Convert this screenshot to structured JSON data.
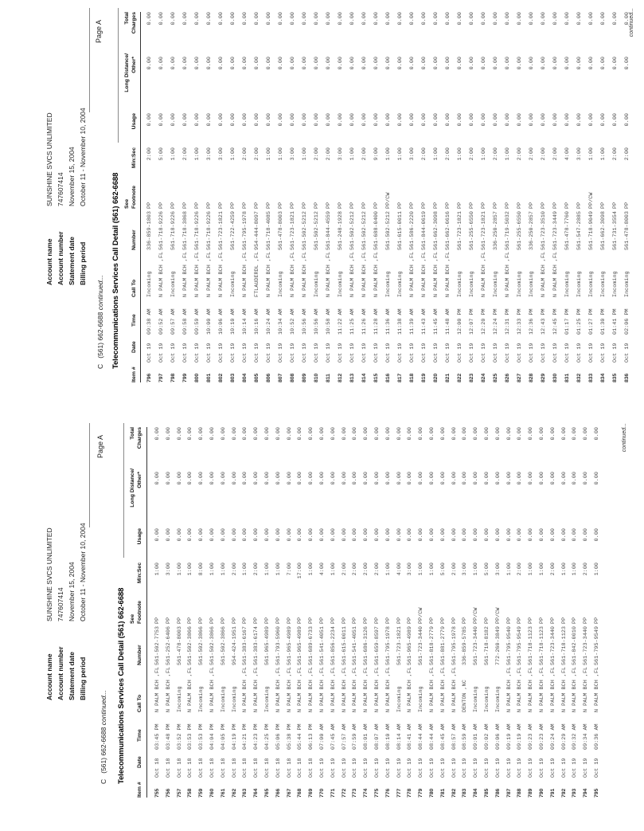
{
  "header": {
    "page_label": "Page A",
    "account": [
      {
        "label": "Account name",
        "value": "SUNSHINE SVCS UNLIMITED"
      },
      {
        "label": "Account number",
        "value": "747607414"
      },
      {
        "label": "Statement date",
        "value": "November 15, 2004"
      },
      {
        "label": "Billing period",
        "value": "October 11 - November 10, 2004"
      }
    ],
    "section_prefix": "C",
    "section_number": "(561) 662-6688",
    "section_continued": "continued...",
    "title": "Telecommunications Services Call Detail (561) 662-6688"
  },
  "table": {
    "headers_top": {
      "see": "See",
      "long_distance": "Long Distance/",
      "total": "Total"
    },
    "headers": {
      "item": "Item #",
      "date": "Date",
      "time": "Time",
      "call_to": "Call To",
      "number": "Number",
      "footnote": "Footnote",
      "min_sec": "Min:Sec",
      "usage": "Usage",
      "other": "Other*",
      "charges": "Charges"
    },
    "zero": "0.00"
  },
  "footer": {
    "continued": "continued..."
  },
  "pages": [
    {
      "name": "call-detail-items-796-836",
      "rows": [
        [
          "796",
          "Oct 19",
          "09:38 AM",
          "Incoming",
          "336-859-1803",
          "PP",
          "2:00"
        ],
        [
          "797",
          "Oct 19",
          "09:52 AM",
          "N PALM BCH ,FL",
          "561-718-9226",
          "PP",
          "5:00"
        ],
        [
          "798",
          "Oct 19",
          "09:57 AM",
          "Incoming",
          "561-718-9226",
          "PP",
          "1:00"
        ],
        [
          "799",
          "Oct 19",
          "09:58 AM",
          "N PALM BCH ,FL",
          "561-718-3868",
          "PP",
          "2:00"
        ],
        [
          "800",
          "Oct 19",
          "09:59 AM",
          "N PALM BCH ,FL",
          "561-718-9226",
          "PP",
          "1:00"
        ],
        [
          "801",
          "Oct 19",
          "10:00 AM",
          "N PALM BCH ,FL",
          "561-718-9226",
          "PP",
          "3:00"
        ],
        [
          "802",
          "Oct 19",
          "10:06 AM",
          "N PALM BCH ,FL",
          "561-723-1821",
          "PP",
          "3:00"
        ],
        [
          "803",
          "Oct 19",
          "10:10 AM",
          "Incoming",
          "561-722-4259",
          "PP",
          "1:00"
        ],
        [
          "804",
          "Oct 19",
          "10:14 AM",
          "N PALM BCH ,FL",
          "561-795-1978",
          "PP",
          "2:00"
        ],
        [
          "805",
          "Oct 19",
          "10:16 AM",
          "FTLAUDERDL ,FL",
          "954-444-8097",
          "PP",
          "2:00"
        ],
        [
          "806",
          "Oct 19",
          "10:24 AM",
          "N PALM BCH ,FL",
          "561-718-4085",
          "PP",
          "1:00"
        ],
        [
          "807",
          "Oct 19",
          "10:34 AM",
          "Incoming",
          "561-478-8003",
          "PP",
          "1:00"
        ],
        [
          "808",
          "Oct 19",
          "10:52 AM",
          "N PALM BCH ,FL",
          "561-723-1821",
          "PP",
          "3:00"
        ],
        [
          "809",
          "Oct 19",
          "10:56 AM",
          "N PALM BCH ,FL",
          "561-502-5212",
          "PP",
          "1:00"
        ],
        [
          "810",
          "Oct 19",
          "10:56 AM",
          "Incoming",
          "561-502-5212",
          "PP",
          "2:00"
        ],
        [
          "811",
          "Oct 19",
          "10:58 AM",
          "N PALM BCH ,FL",
          "561-844-4559",
          "PP",
          "2:00"
        ],
        [
          "812",
          "Oct 19",
          "11:22 AM",
          "Incoming",
          "561-248-1928",
          "PP",
          "3:00"
        ],
        [
          "813",
          "Oct 19",
          "11:25 AM",
          "N PALM BCH ,FL",
          "561-502-5212",
          "PP",
          "1:00"
        ],
        [
          "814",
          "Oct 19",
          "11:26 AM",
          "N PALM BCH ,FL",
          "561-502-5212",
          "PP",
          "2:00"
        ],
        [
          "815",
          "Oct 19",
          "11:28 AM",
          "N PALM BCH ,FL",
          "561-688-0400",
          "PP",
          "9:00"
        ],
        [
          "816",
          "Oct 19",
          "11:36 AM",
          "Incoming",
          "561-502-5212",
          "PP/CW",
          "1:00"
        ],
        [
          "817",
          "Oct 19",
          "11:38 AM",
          "Incoming",
          "561-615-0011",
          "PP",
          "1:00"
        ],
        [
          "818",
          "Oct 19",
          "11:39 AM",
          "N PALM BCH ,FL",
          "561-586-2220",
          "PP",
          "3:00"
        ],
        [
          "819",
          "Oct 19",
          "11:43 AM",
          "N PALM BCH ,FL",
          "561-844-0619",
          "PP",
          "2:00"
        ],
        [
          "820",
          "Oct 19",
          "11:45 AM",
          "N PALM BCH ,FL",
          "561-662-3098",
          "PP",
          "1:00"
        ],
        [
          "821",
          "Oct 19",
          "11:48 AM",
          "N PALM BCH ,FL",
          "561-662-6616",
          "PP",
          "2:00"
        ],
        [
          "822",
          "Oct 19",
          "12:00 PM",
          "Incoming",
          "561-723-1821",
          "PP",
          "1:00"
        ],
        [
          "823",
          "Oct 19",
          "12:07 PM",
          "Incoming",
          "561-255-6550",
          "PP",
          "2:00"
        ],
        [
          "824",
          "Oct 19",
          "12:20 PM",
          "N PALM BCH ,FL",
          "561-723-1821",
          "PP",
          "1:00"
        ],
        [
          "825",
          "Oct 19",
          "12:24 PM",
          "Incoming",
          "336-250-2857",
          "PP",
          "2:00"
        ],
        [
          "826",
          "Oct 19",
          "12:31 PM",
          "N PALM BCH ,FL",
          "561-719-5032",
          "PP",
          "1:00"
        ],
        [
          "827",
          "Oct 19",
          "12:33 PM",
          "Incoming",
          "561-255-6550",
          "PP",
          "2:00"
        ],
        [
          "828",
          "Oct 19",
          "12:36 PM",
          "Incoming",
          "336-250-2857",
          "PP",
          "2:00"
        ],
        [
          "829",
          "Oct 19",
          "12:43 PM",
          "N PALM BCH ,FL",
          "561-723-3510",
          "PP",
          "2:00"
        ],
        [
          "830",
          "Oct 19",
          "12:45 PM",
          "N PALM BCH ,FL",
          "561-723-3449",
          "PP",
          "2:00"
        ],
        [
          "831",
          "Oct 19",
          "01:17 PM",
          "Incoming",
          "561-478-7760",
          "PP",
          "4:00"
        ],
        [
          "832",
          "Oct 19",
          "01:25 PM",
          "Incoming",
          "561-547-2885",
          "PP",
          "3:00"
        ],
        [
          "833",
          "Oct 19",
          "01:27 PM",
          "Incoming",
          "561-718-9049",
          "PP/CW",
          "1:00"
        ],
        [
          "834",
          "Oct 19",
          "01:30 PM",
          "Incoming",
          "561-662-3098",
          "PP",
          "1:00"
        ],
        [
          "835",
          "Oct 19",
          "01:41 PM",
          "Incoming",
          "561-731-3554",
          "PP",
          "2:00"
        ],
        [
          "836",
          "Oct 19",
          "02:06 PM",
          "Incoming",
          "561-478-8003",
          "PP",
          "2:00"
        ]
      ]
    },
    {
      "name": "call-detail-items-755-795",
      "rows": [
        [
          "755",
          "Oct 18",
          "03:45 PM",
          "N PALM BCH ,FL",
          "561-502-7753",
          "PP",
          "1:00"
        ],
        [
          "756",
          "Oct 18",
          "03:48 PM",
          "N PALM BCH ,FL",
          "561-252-6406",
          "PP",
          "3:00"
        ],
        [
          "757",
          "Oct 18",
          "03:52 PM",
          "Incoming",
          "561-478-8003",
          "PP",
          "1:00"
        ],
        [
          "758",
          "Oct 18",
          "03:53 PM",
          "N PALM BCH ,FL",
          "561-502-3866",
          "PP",
          "1:00"
        ],
        [
          "759",
          "Oct 18",
          "03:53 PM",
          "Incoming",
          "561-502-3866",
          "PP",
          "8:00"
        ],
        [
          "760",
          "Oct 18",
          "04:04 PM",
          "N PALM BCH ,FL",
          "561-502-3866",
          "PP",
          "1:00"
        ],
        [
          "761",
          "Oct 18",
          "04:05 PM",
          "Incoming",
          "561-502-3866",
          "PP",
          "1:00"
        ],
        [
          "762",
          "Oct 18",
          "04:19 PM",
          "Incoming",
          "954-424-1951",
          "PP",
          "2:00"
        ],
        [
          "763",
          "Oct 18",
          "04:21 PM",
          "N PALM BCH ,FL",
          "561-383-6167",
          "PP",
          "1:00"
        ],
        [
          "764",
          "Oct 18",
          "04:23 PM",
          "N PALM BCH ,FL",
          "561-383-6174",
          "PP",
          "2:00"
        ],
        [
          "765",
          "Oct 18",
          "04:25 PM",
          "Incoming",
          "561-965-4989",
          "PP",
          "1:00"
        ],
        [
          "766",
          "Oct 18",
          "05:06 PM",
          "N PALM BCH ,FL",
          "561-793-5960",
          "PP",
          "1:00"
        ],
        [
          "767",
          "Oct 18",
          "05:38 PM",
          "N PALM BCH ,FL",
          "561-965-4989",
          "PP",
          "7:00"
        ],
        [
          "768",
          "Oct 18",
          "05:44 PM",
          "N PALM BCH ,FL",
          "561-965-4989",
          "PP",
          "17:00"
        ],
        [
          "769",
          "Oct 18",
          "06:13 PM",
          "N PALM BCH ,FL",
          "561-689-6733",
          "PP",
          "1:00"
        ],
        [
          "770",
          "Oct 19",
          "07:00 AM",
          "N PALM BCH ,FL",
          "561-541-4051",
          "PP",
          "4:00"
        ],
        [
          "771",
          "Oct 19",
          "07:45 AM",
          "N PALM BCH ,FL",
          "561-856-2234",
          "PP",
          "1:00"
        ],
        [
          "772",
          "Oct 19",
          "07:57 AM",
          "N PALM BCH ,FL",
          "561-615-0011",
          "PP",
          "2:00"
        ],
        [
          "773",
          "Oct 19",
          "07:59 AM",
          "N PALM BCH ,FL",
          "561-541-4051",
          "PP",
          "2:00"
        ],
        [
          "774",
          "Oct 19",
          "08:01 AM",
          "N PALM BCH ,FL",
          "561-686-3126",
          "PP",
          "2:00"
        ],
        [
          "775",
          "Oct 19",
          "08:07 AM",
          "N PALM BCH ,FL",
          "561-659-8597",
          "PP",
          "2:00"
        ],
        [
          "776",
          "Oct 19",
          "08:10 AM",
          "N PALM BCH ,FL",
          "561-795-1978",
          "PP",
          "1:00"
        ],
        [
          "777",
          "Oct 19",
          "08:14 AM",
          "Incoming",
          "561-723-1821",
          "PP",
          "4:00"
        ],
        [
          "778",
          "Oct 19",
          "08:41 AM",
          "N PALM BCH ,FL",
          "561-965-4989",
          "PP",
          "3:00"
        ],
        [
          "779",
          "Oct 19",
          "08:44 AM",
          "Incoming",
          "561-723-3440",
          "PP/CW",
          "1:00"
        ],
        [
          "780",
          "Oct 19",
          "08:44 AM",
          "N PALM BCH ,FL",
          "561-818-2779",
          "PP",
          "1:00"
        ],
        [
          "781",
          "Oct 19",
          "08:45 AM",
          "N PALM BCH ,FL",
          "561-881-2779",
          "PP",
          "5:00"
        ],
        [
          "782",
          "Oct 19",
          "08:57 AM",
          "N PALM BCH ,FL",
          "561-795-1978",
          "PP",
          "2:00"
        ],
        [
          "783",
          "Oct 19",
          "08:59 AM",
          "DENTON ,NC",
          "336-859-5785",
          "PP",
          "3:00"
        ],
        [
          "784",
          "Oct 19",
          "09:01 AM",
          "Incoming",
          "561-723-3440",
          "PP/CW",
          "1:00"
        ],
        [
          "785",
          "Oct 19",
          "09:02 AM",
          "Incoming",
          "561-718-8182",
          "PP",
          "5:00"
        ],
        [
          "786",
          "Oct 19",
          "09:06 AM",
          "Incoming",
          "772-260-3849",
          "PP/CW",
          "3:00"
        ],
        [
          "787",
          "Oct 19",
          "09:19 AM",
          "N PALM BCH ,FL",
          "561-795-9540",
          "PP",
          "1:00"
        ],
        [
          "788",
          "Oct 19",
          "09:19 AM",
          "N PALM BCH ,FL",
          "561-795-9549",
          "PP",
          "2:00"
        ],
        [
          "789",
          "Oct 19",
          "09:23 AM",
          "N PALM BCH ,FL",
          "561-718-1123",
          "PP",
          "1:00"
        ],
        [
          "790",
          "Oct 19",
          "09:23 AM",
          "N PALM BCH ,FL",
          "561-718-1123",
          "PP",
          "1:00"
        ],
        [
          "791",
          "Oct 19",
          "09:24 AM",
          "N PALM BCH ,FL",
          "561-723-3440",
          "PP",
          "2:00"
        ],
        [
          "792",
          "Oct 19",
          "09:29 AM",
          "N PALM BCH ,FL",
          "561-718-1123",
          "PP",
          "1:00"
        ],
        [
          "793",
          "Oct 19",
          "09:32 AM",
          "N PALM BCH ,FL",
          "561-842-0010",
          "PP",
          "1:00"
        ],
        [
          "794",
          "Oct 19",
          "09:34 AM",
          "N PALM BCH ,FL",
          "561-723-3440",
          "PP",
          "2:00"
        ],
        [
          "795",
          "Oct 19",
          "09:36 AM",
          "N PALM BCH ,FL",
          "561-795-9549",
          "PP",
          "1:00"
        ]
      ]
    }
  ]
}
